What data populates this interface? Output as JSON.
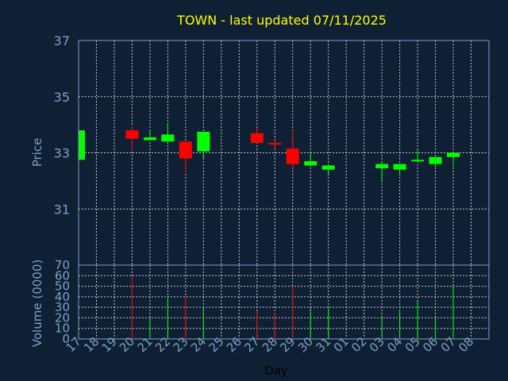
{
  "chart_data": {
    "type": "candlestick",
    "title": "TOWN - last updated 07/11/2025",
    "ylabel": "Price",
    "volume_label": "Volume (0000)",
    "xlabel": "Day",
    "ylim": [
      29,
      37
    ],
    "yticks": [
      "31",
      "33",
      "35",
      "37"
    ],
    "volume_ylim": [
      0,
      70
    ],
    "volume_ticks": [
      "0",
      "10",
      "20",
      "30",
      "40",
      "50",
      "60",
      "70"
    ],
    "x_labels": [
      "17",
      "18",
      "19",
      "20",
      "21",
      "22",
      "23",
      "24",
      "25",
      "26",
      "27",
      "28",
      "29",
      "30",
      "31",
      "01",
      "02",
      "03",
      "04",
      "05",
      "06",
      "07",
      "08"
    ],
    "colors": {
      "up": "#00ff00",
      "down": "#ff0000"
    },
    "candles": [
      {
        "x": "17",
        "open": 32.75,
        "high": 33.8,
        "low": 32.7,
        "close": 33.8,
        "volume": 0
      },
      {
        "x": "20",
        "open": 33.8,
        "high": 33.95,
        "low": 33.1,
        "close": 33.5,
        "volume": 60
      },
      {
        "x": "21",
        "open": 33.45,
        "high": 33.8,
        "low": 33.45,
        "close": 33.55,
        "volume": 21
      },
      {
        "x": "22",
        "open": 33.4,
        "high": 34.05,
        "low": 33.4,
        "close": 33.65,
        "volume": 38
      },
      {
        "x": "23",
        "open": 33.4,
        "high": 33.4,
        "low": 32.3,
        "close": 32.8,
        "volume": 40
      },
      {
        "x": "24",
        "open": 33.05,
        "high": 33.75,
        "low": 32.8,
        "close": 33.75,
        "volume": 30
      },
      {
        "x": "27",
        "open": 33.7,
        "high": 33.9,
        "low": 33.35,
        "close": 33.35,
        "volume": 26
      },
      {
        "x": "28",
        "open": 33.35,
        "high": 33.45,
        "low": 33.15,
        "close": 33.3,
        "volume": 25
      },
      {
        "x": "29",
        "open": 33.15,
        "high": 33.8,
        "low": 32.4,
        "close": 32.6,
        "volume": 50
      },
      {
        "x": "30",
        "open": 32.55,
        "high": 33.0,
        "low": 32.5,
        "close": 32.7,
        "volume": 29
      },
      {
        "x": "31",
        "open": 32.4,
        "high": 32.55,
        "low": 32.25,
        "close": 32.55,
        "volume": 29
      },
      {
        "x": "03",
        "open": 32.45,
        "high": 32.7,
        "low": 31.95,
        "close": 32.6,
        "volume": 22
      },
      {
        "x": "04",
        "open": 32.4,
        "high": 32.6,
        "low": 32.2,
        "close": 32.6,
        "volume": 28
      },
      {
        "x": "05",
        "open": 32.7,
        "high": 33.15,
        "low": 32.65,
        "close": 32.75,
        "volume": 36
      },
      {
        "x": "06",
        "open": 32.6,
        "high": 32.85,
        "low": 32.5,
        "close": 32.85,
        "volume": 20
      },
      {
        "x": "07",
        "open": 32.85,
        "high": 33.0,
        "low": 32.5,
        "close": 33.0,
        "volume": 50
      }
    ]
  }
}
